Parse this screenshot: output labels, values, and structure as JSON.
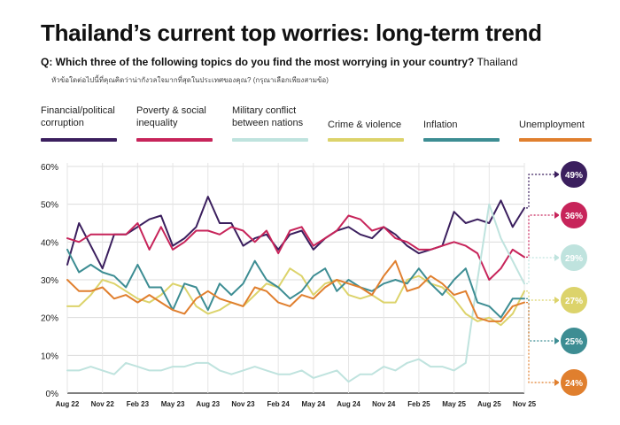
{
  "title": "Thailand’s current top worries: long-term trend",
  "question": {
    "label": "Q: Which three of the following topics do you find the most worrying in your country?",
    "country": "Thailand"
  },
  "thai_question": "หัวข้อใดต่อไปนี้ที่คุณคิดว่าน่ากังวลใจมากที่สุดในประเทศของคุณ? (กรุณาเลือกเพียงสามข้อ)",
  "chart_data": {
    "type": "line",
    "x": [
      "Aug 22",
      "Sep 22",
      "Oct 22",
      "Nov 22",
      "Dec 22",
      "Jan 23",
      "Feb 23",
      "Mar 23",
      "Apr 23",
      "May 23",
      "Jun 23",
      "Jul 23",
      "Aug 23",
      "Sep 23",
      "Oct 23",
      "Nov 23",
      "Dec 23",
      "Jan 24",
      "Feb 24",
      "Mar 24",
      "Apr 24",
      "May 24",
      "Jun 24",
      "Jul 24",
      "Aug 24",
      "Sep 24",
      "Oct 24",
      "Nov 24",
      "Dec 24",
      "Jan 25",
      "Feb 25",
      "Mar 25",
      "Apr 25",
      "May 25",
      "Jun 25",
      "Jul 25",
      "Aug 25",
      "Sep 25",
      "Oct 25",
      "Nov 25"
    ],
    "x_ticks": [
      "Aug 22",
      "Nov 22",
      "Feb 23",
      "May 23",
      "Aug 23",
      "Nov 23",
      "Feb 24",
      "May 24",
      "Aug 24",
      "Nov 24",
      "Feb 25",
      "May 25",
      "Aug 25",
      "Nov 25"
    ],
    "y_ticks": [
      "0%",
      "10%",
      "20%",
      "30%",
      "40%",
      "50%",
      "60%"
    ],
    "ylim": [
      0,
      60
    ],
    "grid": true,
    "legend_position": "top",
    "series": [
      {
        "name": "Financial/political corruption",
        "color": "#3b1f5e",
        "end_label": "49%",
        "values": [
          34,
          45,
          39,
          33,
          42,
          42,
          44,
          46,
          47,
          39,
          41,
          44,
          52,
          45,
          45,
          39,
          41,
          42,
          38,
          42,
          43,
          38,
          41,
          43,
          44,
          42,
          41,
          44,
          42,
          39,
          37,
          38,
          39,
          48,
          45,
          46,
          45,
          51,
          44,
          49
        ]
      },
      {
        "name": "Poverty & social inequality",
        "color": "#c7245a",
        "end_label": "36%",
        "values": [
          41,
          40,
          42,
          42,
          42,
          42,
          45,
          38,
          44,
          38,
          40,
          43,
          43,
          42,
          44,
          43,
          40,
          43,
          37,
          43,
          44,
          39,
          41,
          43,
          47,
          46,
          43,
          44,
          41,
          40,
          38,
          38,
          39,
          40,
          39,
          37,
          30,
          33,
          38,
          36
        ]
      },
      {
        "name": "Military conflict between nations",
        "color": "#bfe3de",
        "end_label": "29%",
        "values": [
          6,
          6,
          7,
          6,
          5,
          8,
          7,
          6,
          6,
          7,
          7,
          8,
          8,
          6,
          5,
          6,
          7,
          6,
          5,
          5,
          6,
          4,
          5,
          6,
          3,
          5,
          5,
          7,
          6,
          8,
          9,
          7,
          7,
          6,
          8,
          30,
          50,
          41,
          35,
          29
        ]
      },
      {
        "name": "Crime & violence",
        "color": "#dcd36b",
        "end_label": "27%",
        "values": [
          23,
          23,
          26,
          30,
          29,
          27,
          25,
          24,
          26,
          29,
          28,
          23,
          21,
          22,
          24,
          23,
          26,
          29,
          28,
          33,
          31,
          26,
          29,
          30,
          26,
          25,
          26,
          24,
          24,
          30,
          31,
          29,
          28,
          25,
          21,
          19,
          20,
          18,
          21,
          27
        ]
      },
      {
        "name": "Inflation",
        "color": "#3d8d93",
        "end_label": "25%",
        "values": [
          38,
          32,
          34,
          32,
          31,
          28,
          34,
          28,
          28,
          22,
          29,
          28,
          22,
          29,
          26,
          29,
          35,
          30,
          28,
          25,
          27,
          31,
          33,
          27,
          30,
          28,
          27,
          29,
          30,
          29,
          33,
          29,
          26,
          30,
          33,
          24,
          23,
          20,
          25,
          25
        ]
      },
      {
        "name": "Unemployment",
        "color": "#e07f2e",
        "end_label": "24%",
        "values": [
          30,
          27,
          27,
          28,
          25,
          26,
          24,
          26,
          24,
          22,
          21,
          25,
          27,
          25,
          24,
          23,
          28,
          27,
          24,
          23,
          26,
          25,
          28,
          30,
          29,
          28,
          26,
          31,
          35,
          27,
          28,
          31,
          29,
          26,
          27,
          20,
          19,
          19,
          23,
          24
        ]
      }
    ]
  }
}
